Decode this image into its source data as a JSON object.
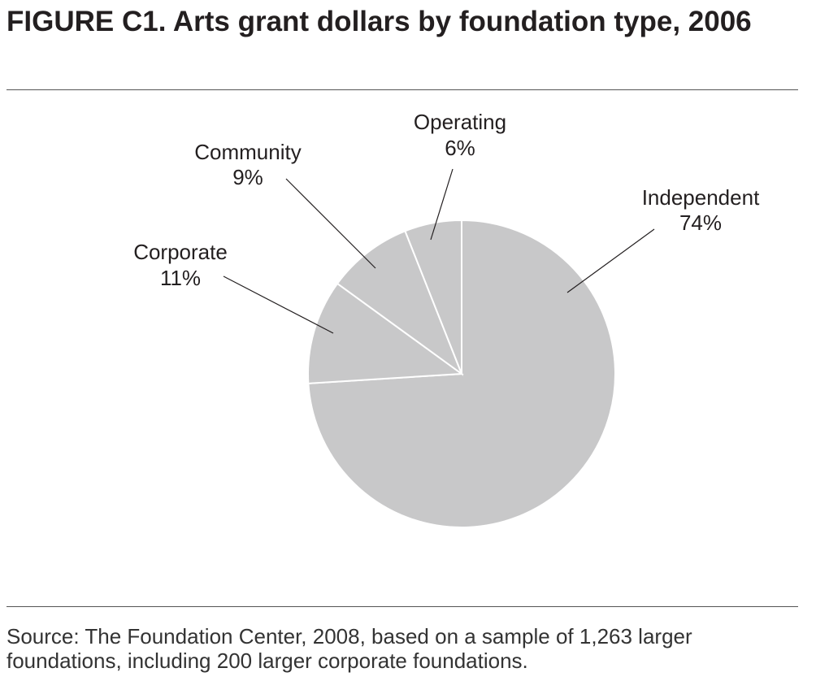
{
  "chart_data": {
    "type": "pie",
    "title": "FIGURE C1. Arts grant dollars by foundation type, 2006",
    "categories": [
      "Independent",
      "Corporate",
      "Community",
      "Operating"
    ],
    "values": [
      74,
      11,
      9,
      6
    ],
    "value_labels": [
      "74%",
      "11%",
      "9%",
      "6%"
    ],
    "color": "#c8c8c9",
    "source": "Source: The Foundation Center, 2008, based on a sample of 1,263 larger foundations, including 200 larger corporate foundations."
  }
}
